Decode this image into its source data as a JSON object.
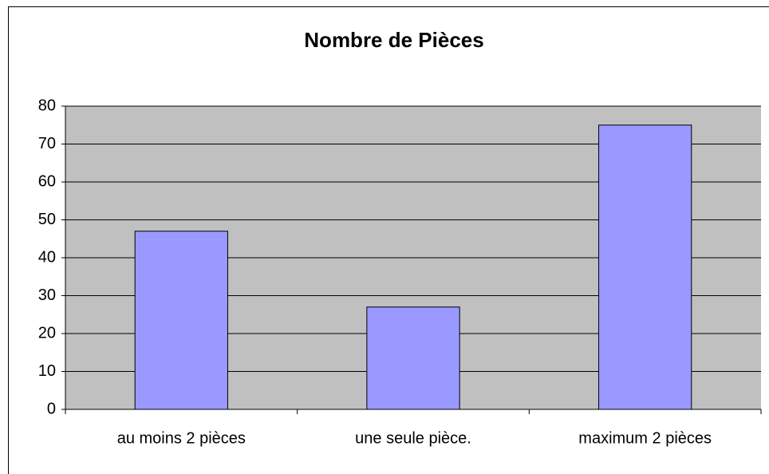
{
  "chart_data": {
    "type": "bar",
    "title": "Nombre de Pièces",
    "categories": [
      "au moins 2 pièces",
      "une seule pièce.",
      "maximum 2 pièces"
    ],
    "values": [
      47,
      27,
      75
    ],
    "color": "#9999ff",
    "ylim": [
      0,
      80
    ],
    "yticks": [
      0,
      10,
      20,
      30,
      40,
      50,
      60,
      70,
      80
    ],
    "grid": true
  }
}
